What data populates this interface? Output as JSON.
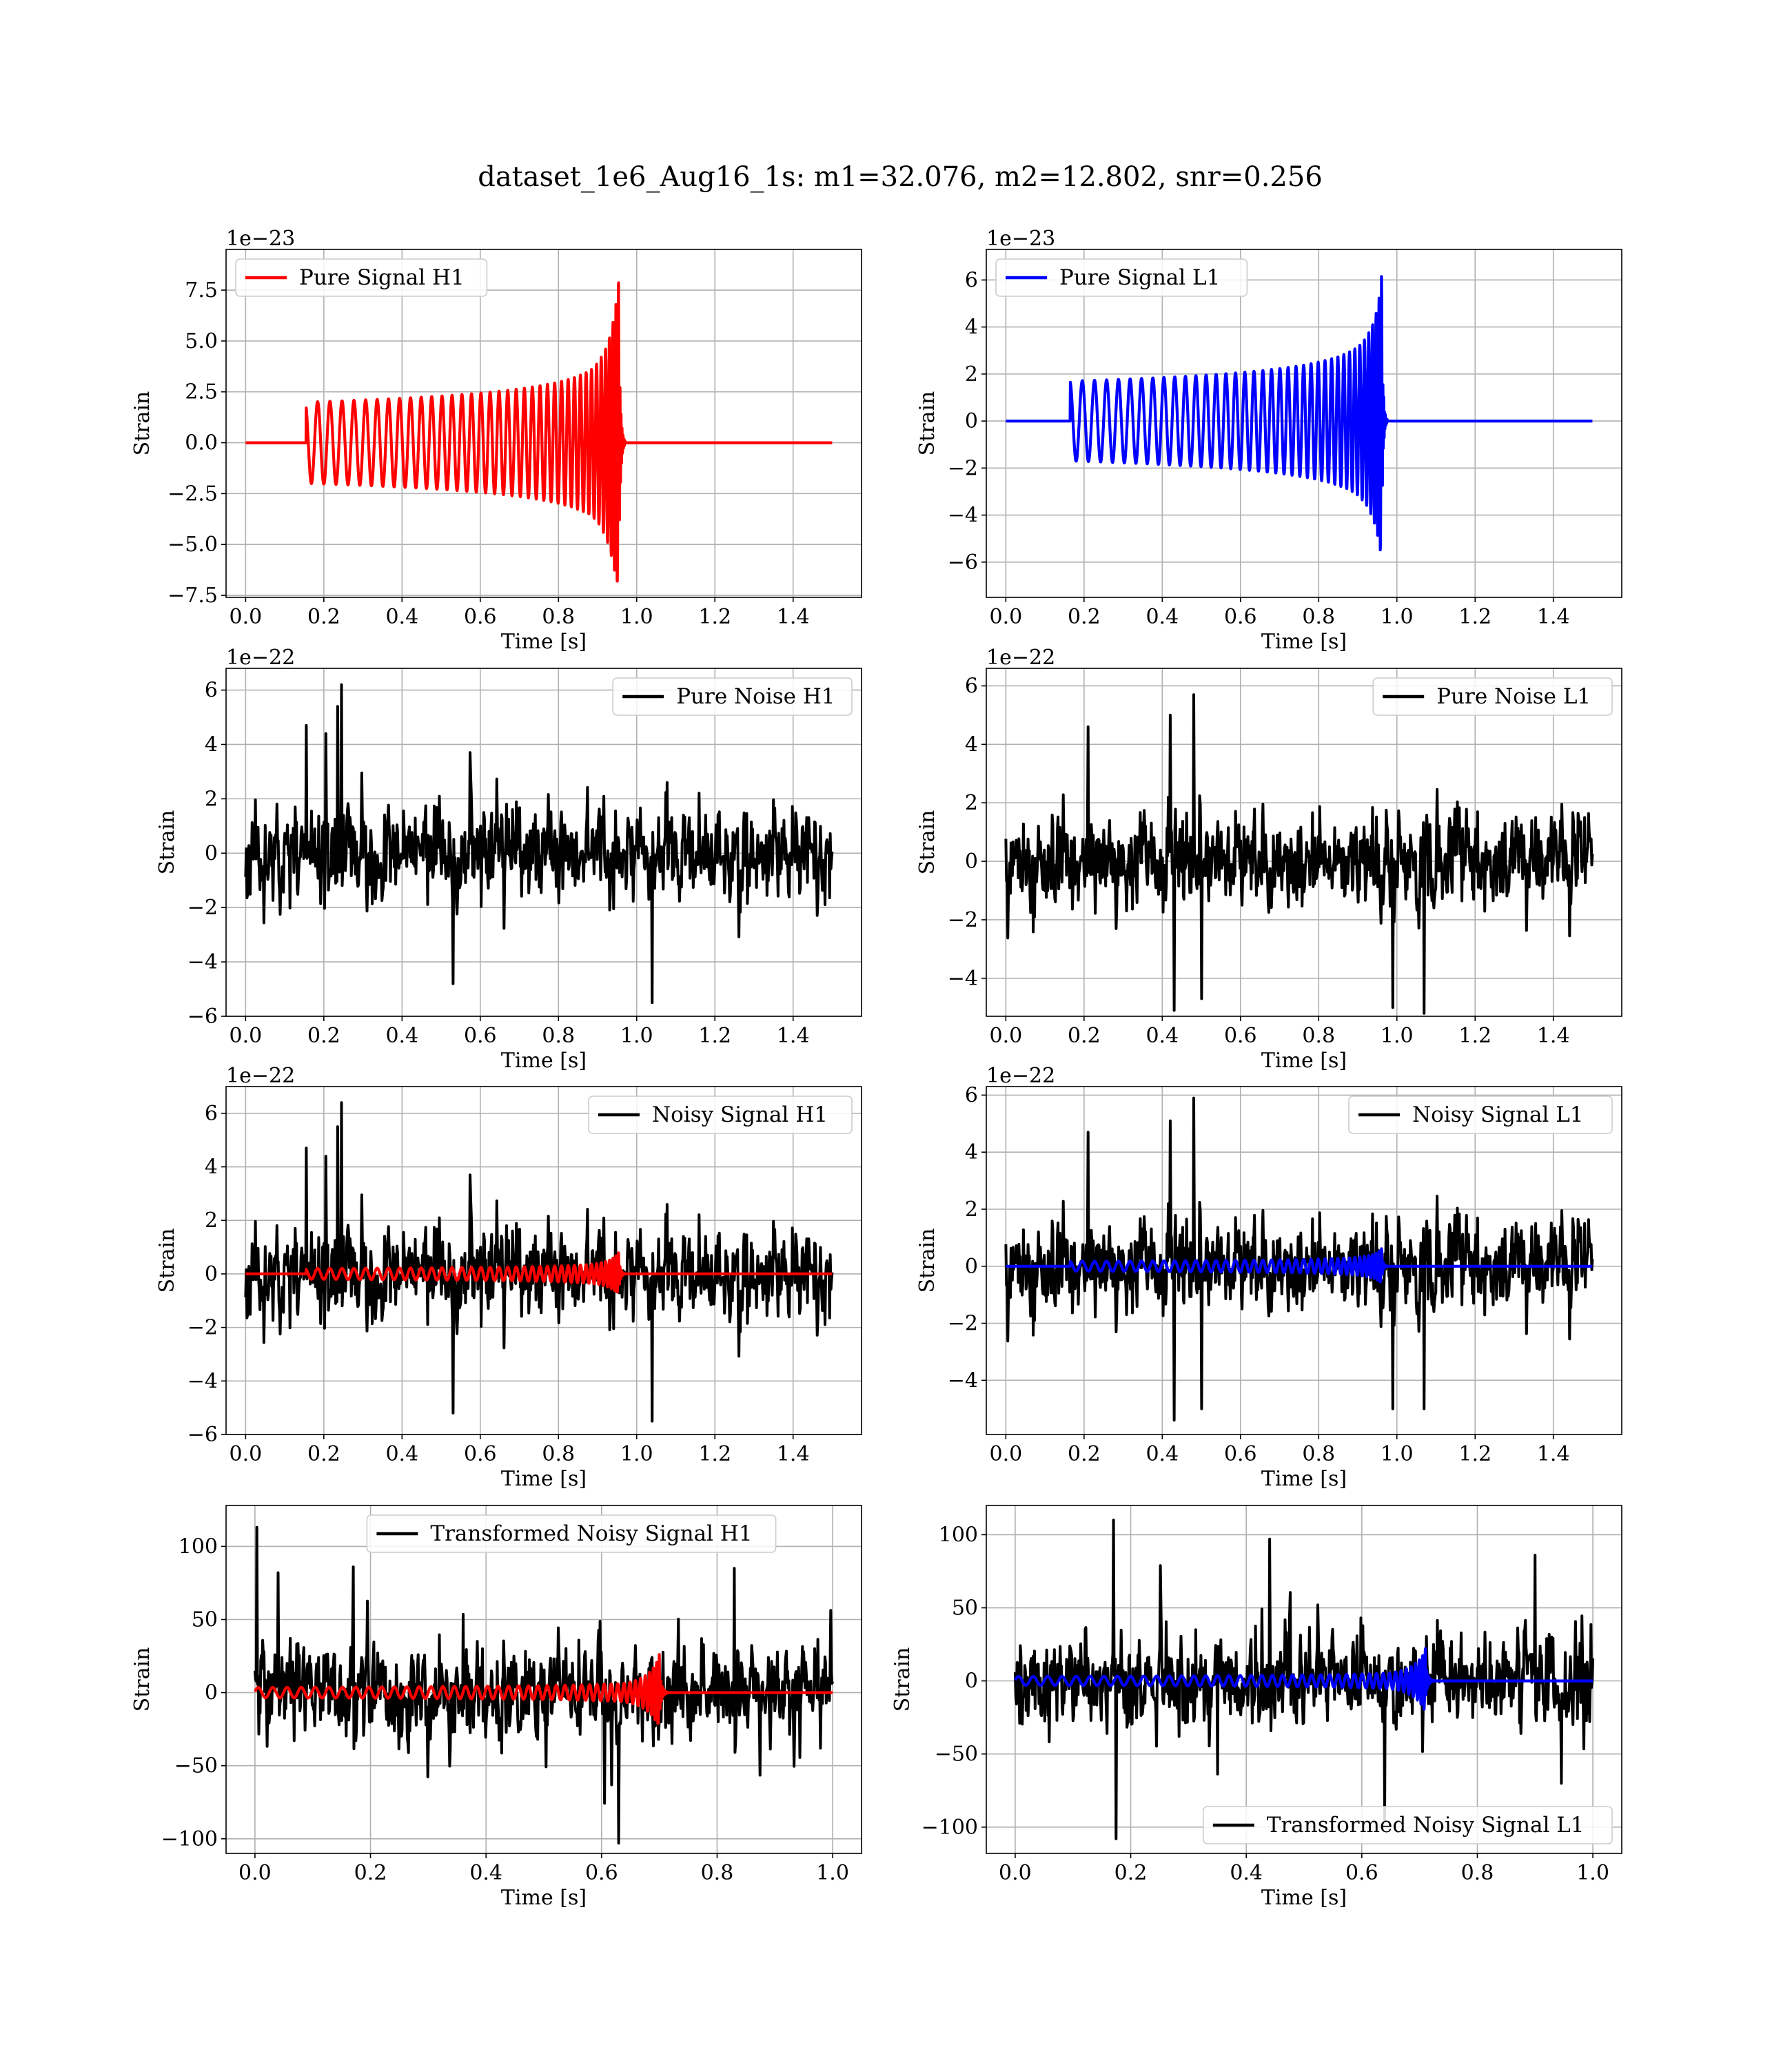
{
  "figure": {
    "title": "dataset_1e6_Aug16_1s: m1=32.076, m2=12.802, snr=0.256"
  },
  "colors": {
    "h1_signal": "#ff0000",
    "l1_signal": "#0000ff",
    "noise": "#000000",
    "grid": "#b0b0b0"
  },
  "chart_data": [
    {
      "id": "pure-signal-h1",
      "type": "line",
      "xlabel": "Time [s]",
      "ylabel": "Strain",
      "offset_text": "1e−23",
      "xlim": [
        -0.05,
        1.575
      ],
      "ylim": [
        -7.6,
        9.5
      ],
      "xticks": [
        0.0,
        0.2,
        0.4,
        0.6,
        0.8,
        1.0,
        1.2,
        1.4
      ],
      "xtick_labels": [
        "0.0",
        "0.2",
        "0.4",
        "0.6",
        "0.8",
        "1.0",
        "1.2",
        "1.4"
      ],
      "yticks": [
        -7.5,
        -5.0,
        -2.5,
        0.0,
        2.5,
        5.0,
        7.5
      ],
      "ytick_labels": [
        "−7.5",
        "−5.0",
        "−2.5",
        "0.0",
        "2.5",
        "5.0",
        "7.5"
      ],
      "grid": true,
      "legend_position": "upper left",
      "series": [
        {
          "name": "Pure Signal H1",
          "role": "chirp",
          "color": "#ff0000",
          "x_range": [
            0.0,
            1.5
          ],
          "chirp_start": 0.155,
          "merger": 0.955,
          "end": 0.97,
          "amp_start": 2.0,
          "peak_max": 8.8,
          "peak_min": -6.8,
          "n_cycles": 38,
          "start_phase": 1.8,
          "show_in_legend": true
        }
      ]
    },
    {
      "id": "pure-signal-l1",
      "type": "line",
      "xlabel": "Time [s]",
      "ylabel": "Strain",
      "offset_text": "1e−23",
      "xlim": [
        -0.05,
        1.575
      ],
      "ylim": [
        -7.5,
        7.3
      ],
      "xticks": [
        0.0,
        0.2,
        0.4,
        0.6,
        0.8,
        1.0,
        1.2,
        1.4
      ],
      "xtick_labels": [
        "0.0",
        "0.2",
        "0.4",
        "0.6",
        "0.8",
        "1.0",
        "1.2",
        "1.4"
      ],
      "yticks": [
        -6,
        -4,
        -2,
        0,
        2,
        4,
        6
      ],
      "ytick_labels": [
        "−6",
        "−4",
        "−2",
        "0",
        "2",
        "4",
        "6"
      ],
      "grid": true,
      "legend_position": "upper left",
      "series": [
        {
          "name": "Pure Signal L1",
          "role": "chirp",
          "color": "#0000ff",
          "x_range": [
            0.0,
            1.5
          ],
          "chirp_start": 0.165,
          "merger": 0.962,
          "end": 0.975,
          "amp_start": 1.7,
          "peak_max": 6.5,
          "peak_min": -7.2,
          "n_cycles": 38,
          "start_phase": 1.5,
          "show_in_legend": true
        }
      ]
    },
    {
      "id": "pure-noise-h1",
      "type": "line",
      "xlabel": "Time [s]",
      "ylabel": "Strain",
      "offset_text": "1e−22",
      "xlim": [
        -0.05,
        1.575
      ],
      "ylim": [
        -6.0,
        6.8
      ],
      "xticks": [
        0.0,
        0.2,
        0.4,
        0.6,
        0.8,
        1.0,
        1.2,
        1.4
      ],
      "xtick_labels": [
        "0.0",
        "0.2",
        "0.4",
        "0.6",
        "0.8",
        "1.0",
        "1.2",
        "1.4"
      ],
      "yticks": [
        -6,
        -4,
        -2,
        0,
        2,
        4,
        6
      ],
      "ytick_labels": [
        "−6",
        "−4",
        "−2",
        "0",
        "2",
        "4",
        "6"
      ],
      "grid": true,
      "legend_position": "upper right",
      "series": [
        {
          "name": "Pure Noise H1",
          "role": "noise",
          "color": "#000000",
          "x_range": [
            0.0,
            1.5
          ],
          "sigma": 1.4,
          "seed": 11,
          "n_points": 900,
          "spikes": [
            [
              0.245,
              6.2
            ],
            [
              0.235,
              5.4
            ],
            [
              1.04,
              -5.5
            ],
            [
              0.53,
              -4.8
            ],
            [
              0.155,
              4.7
            ]
          ],
          "show_in_legend": true
        }
      ]
    },
    {
      "id": "pure-noise-l1",
      "type": "line",
      "xlabel": "Time [s]",
      "ylabel": "Strain",
      "offset_text": "1e−22",
      "xlim": [
        -0.05,
        1.575
      ],
      "ylim": [
        -5.3,
        6.6
      ],
      "xticks": [
        0.0,
        0.2,
        0.4,
        0.6,
        0.8,
        1.0,
        1.2,
        1.4
      ],
      "xtick_labels": [
        "0.0",
        "0.2",
        "0.4",
        "0.6",
        "0.8",
        "1.0",
        "1.2",
        "1.4"
      ],
      "yticks": [
        -4,
        -2,
        0,
        2,
        4,
        6
      ],
      "ytick_labels": [
        "−4",
        "−2",
        "0",
        "2",
        "4",
        "6"
      ],
      "grid": true,
      "legend_position": "upper right",
      "series": [
        {
          "name": "Pure Noise L1",
          "role": "noise",
          "color": "#000000",
          "x_range": [
            0.0,
            1.5
          ],
          "sigma": 1.35,
          "seed": 29,
          "n_points": 900,
          "spikes": [
            [
              0.48,
              5.7
            ],
            [
              0.42,
              5.0
            ],
            [
              0.43,
              -5.1
            ],
            [
              1.07,
              -5.2
            ],
            [
              0.99,
              -5.0
            ],
            [
              0.5,
              -4.7
            ],
            [
              0.21,
              4.6
            ]
          ],
          "show_in_legend": true
        }
      ]
    },
    {
      "id": "noisy-signal-h1",
      "type": "line",
      "xlabel": "Time [s]",
      "ylabel": "Strain",
      "offset_text": "1e−22",
      "xlim": [
        -0.05,
        1.575
      ],
      "ylim": [
        -6.0,
        7.0
      ],
      "xticks": [
        0.0,
        0.2,
        0.4,
        0.6,
        0.8,
        1.0,
        1.2,
        1.4
      ],
      "xtick_labels": [
        "0.0",
        "0.2",
        "0.4",
        "0.6",
        "0.8",
        "1.0",
        "1.2",
        "1.4"
      ],
      "yticks": [
        -6,
        -4,
        -2,
        0,
        2,
        4,
        6
      ],
      "ytick_labels": [
        "−6",
        "−4",
        "−2",
        "0",
        "2",
        "4",
        "6"
      ],
      "grid": true,
      "legend_position": "upper right",
      "series": [
        {
          "name": "Noisy Signal H1",
          "role": "noise",
          "color": "#000000",
          "x_range": [
            0.0,
            1.5
          ],
          "sigma": 1.4,
          "seed": 11,
          "n_points": 900,
          "spikes": [
            [
              0.245,
              6.4
            ],
            [
              0.235,
              5.5
            ],
            [
              1.04,
              -5.5
            ],
            [
              0.53,
              -5.2
            ],
            [
              0.155,
              4.7
            ]
          ],
          "show_in_legend": true
        },
        {
          "name": "",
          "role": "chirp",
          "color": "#ff0000",
          "x_range": [
            0.0,
            1.5
          ],
          "chirp_start": 0.155,
          "merger": 0.955,
          "end": 0.97,
          "amp_start": 0.2,
          "peak_max": 0.88,
          "peak_min": -0.68,
          "n_cycles": 38,
          "start_phase": 1.8,
          "show_in_legend": false
        }
      ]
    },
    {
      "id": "noisy-signal-l1",
      "type": "line",
      "xlabel": "Time [s]",
      "ylabel": "Strain",
      "offset_text": "1e−22",
      "xlim": [
        -0.05,
        1.575
      ],
      "ylim": [
        -5.9,
        6.3
      ],
      "xticks": [
        0.0,
        0.2,
        0.4,
        0.6,
        0.8,
        1.0,
        1.2,
        1.4
      ],
      "xtick_labels": [
        "0.0",
        "0.2",
        "0.4",
        "0.6",
        "0.8",
        "1.0",
        "1.2",
        "1.4"
      ],
      "yticks": [
        -4,
        -2,
        0,
        2,
        4,
        6
      ],
      "ytick_labels": [
        "−4",
        "−2",
        "0",
        "2",
        "4",
        "6"
      ],
      "grid": true,
      "legend_position": "upper right",
      "series": [
        {
          "name": "Noisy Signal L1",
          "role": "noise",
          "color": "#000000",
          "x_range": [
            0.0,
            1.5
          ],
          "sigma": 1.35,
          "seed": 29,
          "n_points": 900,
          "spikes": [
            [
              0.48,
              5.9
            ],
            [
              0.42,
              5.1
            ],
            [
              0.43,
              -5.4
            ],
            [
              1.07,
              -5.0
            ],
            [
              0.99,
              -5.0
            ],
            [
              0.5,
              -5.0
            ],
            [
              0.21,
              4.7
            ]
          ],
          "show_in_legend": true
        },
        {
          "name": "",
          "role": "chirp",
          "color": "#0000ff",
          "x_range": [
            0.0,
            1.5
          ],
          "chirp_start": 0.165,
          "merger": 0.962,
          "end": 0.975,
          "amp_start": 0.17,
          "peak_max": 0.65,
          "peak_min": -0.72,
          "n_cycles": 38,
          "start_phase": 1.5,
          "show_in_legend": false
        }
      ]
    },
    {
      "id": "transformed-noisy-signal-h1",
      "type": "line",
      "xlabel": "Time [s]",
      "ylabel": "Strain",
      "offset_text": "",
      "xlim": [
        -0.05,
        1.05
      ],
      "ylim": [
        -110,
        128
      ],
      "xticks": [
        0.0,
        0.2,
        0.4,
        0.6,
        0.8,
        1.0
      ],
      "xtick_labels": [
        "0.0",
        "0.2",
        "0.4",
        "0.6",
        "0.8",
        "1.0"
      ],
      "yticks": [
        -100,
        -50,
        0,
        50,
        100
      ],
      "ytick_labels": [
        "−100",
        "−50",
        "0",
        "50",
        "100"
      ],
      "grid": true,
      "legend_position": "upper center",
      "series": [
        {
          "name": "Transformed Noisy Signal H1",
          "role": "noise",
          "color": "#000000",
          "x_range": [
            0.0,
            1.0
          ],
          "sigma": 27,
          "seed": 53,
          "n_points": 900,
          "spikes": [
            [
              0.003,
              113
            ],
            [
              0.63,
              -103
            ],
            [
              0.04,
              82
            ],
            [
              0.17,
              86
            ],
            [
              0.83,
              85
            ]
          ],
          "show_in_legend": true
        },
        {
          "name": "",
          "role": "chirp",
          "color": "#ff0000",
          "x_range": [
            0.0,
            1.0
          ],
          "chirp_start": 0.0,
          "merger": 0.7,
          "end": 0.715,
          "amp_start": 3.5,
          "peak_max": 26,
          "peak_min": -21,
          "n_cycles": 42,
          "start_phase": 0.0,
          "show_in_legend": false
        }
      ]
    },
    {
      "id": "transformed-noisy-signal-l1",
      "type": "line",
      "xlabel": "Time [s]",
      "ylabel": "Strain",
      "offset_text": "",
      "xlim": [
        -0.05,
        1.05
      ],
      "ylim": [
        -118,
        120
      ],
      "xticks": [
        0.0,
        0.2,
        0.4,
        0.6,
        0.8,
        1.0
      ],
      "xtick_labels": [
        "0.0",
        "0.2",
        "0.4",
        "0.6",
        "0.8",
        "1.0"
      ],
      "yticks": [
        -100,
        -50,
        0,
        50,
        100
      ],
      "ytick_labels": [
        "−100",
        "−50",
        "0",
        "50",
        "100"
      ],
      "grid": true,
      "legend_position": "lower right",
      "series": [
        {
          "name": "",
          "role": "noise",
          "color": "#000000",
          "x_range": [
            0.0,
            1.0
          ],
          "sigma": 27,
          "seed": 71,
          "n_points": 900,
          "spikes": [
            [
              0.17,
              110
            ],
            [
              0.175,
              -108
            ],
            [
              0.44,
              97
            ],
            [
              0.64,
              -95
            ],
            [
              0.9,
              86
            ]
          ],
          "show_in_legend": false
        },
        {
          "name": "",
          "role": "chirp",
          "color": "#0000ff",
          "x_range": [
            0.0,
            1.0
          ],
          "chirp_start": 0.0,
          "merger": 0.71,
          "end": 0.725,
          "amp_start": 3.0,
          "peak_max": 22,
          "peak_min": -22,
          "n_cycles": 42,
          "start_phase": 0.0,
          "show_in_legend": false
        }
      ],
      "legend_entries": [
        "Transformed Noisy Signal L1"
      ]
    }
  ]
}
